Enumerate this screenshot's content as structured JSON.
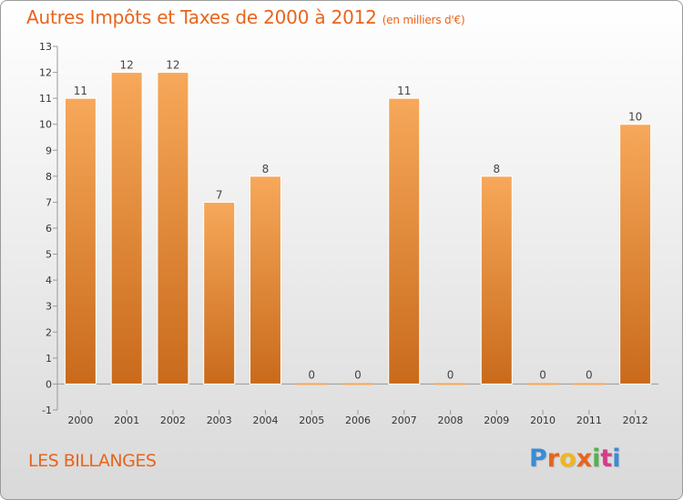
{
  "header": {
    "title": "Autres Impôts et Taxes de 2000 à 2012",
    "subtitle": "(en milliers d'€)"
  },
  "footer": {
    "commune": "LES BILLANGES",
    "logo_text": "Proxiti"
  },
  "colors": {
    "title": "#e8641c",
    "bar_light": "#f7a85a",
    "bar_dark": "#c96a1b",
    "logo_letters": [
      "#3a8bd8",
      "#e8641c",
      "#f2b51d",
      "#e8641c",
      "#53b246",
      "#d83a8c",
      "#3a8bd8"
    ]
  },
  "chart_data": {
    "type": "bar",
    "title": "Autres Impôts et Taxes de 2000 à 2012",
    "subtitle": "(en milliers d'€)",
    "xlabel": "",
    "ylabel": "",
    "categories": [
      "2000",
      "2001",
      "2002",
      "2003",
      "2004",
      "2005",
      "2006",
      "2007",
      "2008",
      "2009",
      "2010",
      "2011",
      "2012"
    ],
    "values": [
      11,
      12,
      12,
      7,
      8,
      0,
      0,
      11,
      0,
      8,
      0,
      0,
      10
    ],
    "ylim": [
      -1,
      13
    ],
    "yticks": [
      -1,
      0,
      1,
      2,
      3,
      4,
      5,
      6,
      7,
      8,
      9,
      10,
      11,
      12,
      13
    ],
    "grid": false,
    "legend": "none"
  }
}
